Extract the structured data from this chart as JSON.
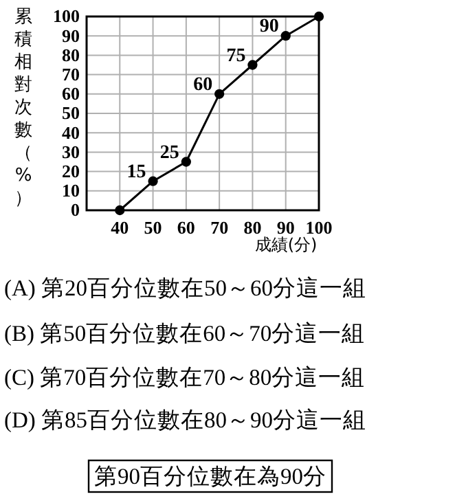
{
  "chart_data": {
    "type": "line",
    "ylabel": "累積相對次數（%）",
    "xlabel": "成績(分)",
    "x": [
      40,
      50,
      60,
      70,
      80,
      90,
      100
    ],
    "values": [
      0,
      15,
      25,
      60,
      75,
      90,
      100
    ],
    "value_labels": [
      null,
      "15",
      "25",
      "60",
      "75",
      "90",
      null
    ],
    "color": "#000000",
    "marker": "circle",
    "line_style": "solid",
    "grid": true,
    "xlim": [
      30,
      100
    ],
    "xticks": [
      40,
      50,
      60,
      70,
      80,
      90,
      100
    ],
    "ylim": [
      0,
      100
    ],
    "yticks": [
      0,
      10,
      20,
      30,
      40,
      50,
      60,
      70,
      80,
      90,
      100
    ],
    "annotations": [
      "(A) 第20百分位數在50～60分這一組",
      "(B) 第50百分位數在60～70分這一組",
      "(C) 第70百分位數在70～80分這一組",
      "(D) 第85百分位數在80～90分這一組",
      "第90百分位數在為90分"
    ]
  }
}
